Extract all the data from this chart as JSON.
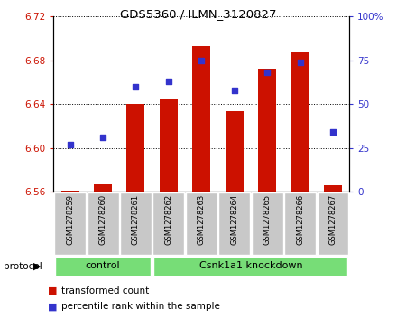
{
  "title": "GDS5360 / ILMN_3120827",
  "samples": [
    "GSM1278259",
    "GSM1278260",
    "GSM1278261",
    "GSM1278262",
    "GSM1278263",
    "GSM1278264",
    "GSM1278265",
    "GSM1278266",
    "GSM1278267"
  ],
  "transformed_count": [
    6.561,
    6.567,
    6.64,
    6.644,
    6.693,
    6.634,
    6.672,
    6.687,
    6.566
  ],
  "percentile_rank": [
    27,
    31,
    60,
    63,
    75,
    58,
    68,
    74,
    34
  ],
  "bar_color": "#cc1100",
  "dot_color": "#3333cc",
  "ylim_left": [
    6.56,
    6.72
  ],
  "ylim_right": [
    0,
    100
  ],
  "yticks_left": [
    6.56,
    6.6,
    6.64,
    6.68,
    6.72
  ],
  "yticks_right": [
    0,
    25,
    50,
    75,
    100
  ],
  "ytick_labels_right": [
    "0",
    "25",
    "50",
    "75",
    "100%"
  ],
  "bar_bottom": 6.56,
  "n_control": 3,
  "n_knockdown": 6,
  "control_label": "control",
  "knockdown_label": "Csnk1a1 knockdown",
  "protocol_label": "protocol",
  "legend_bar_label": "transformed count",
  "legend_dot_label": "percentile rank within the sample",
  "tick_area_color": "#c8c8c8",
  "protocol_area_color": "#77dd77",
  "bg_color": "#ffffff"
}
